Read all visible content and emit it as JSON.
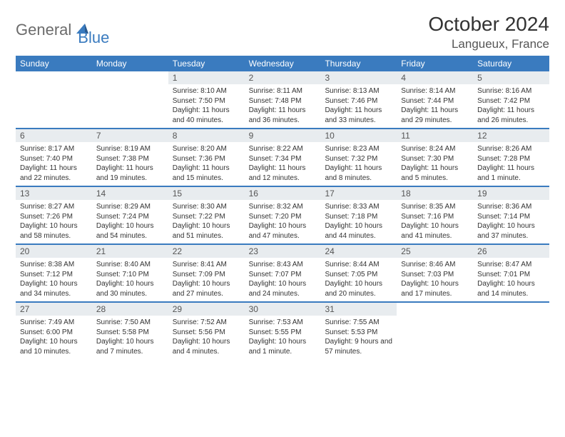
{
  "brand": {
    "part1": "General",
    "part2": "Blue"
  },
  "title": "October 2024",
  "location": "Langueux, France",
  "colors": {
    "header_bg": "#3a7bbf",
    "header_text": "#ffffff",
    "daynum_bg": "#e8ecef",
    "daynum_text": "#555555",
    "body_text": "#333333",
    "rule": "#3a7bbf"
  },
  "day_names": [
    "Sunday",
    "Monday",
    "Tuesday",
    "Wednesday",
    "Thursday",
    "Friday",
    "Saturday"
  ],
  "weeks": [
    [
      {
        "n": "",
        "sr": "",
        "ss": "",
        "dl": ""
      },
      {
        "n": "",
        "sr": "",
        "ss": "",
        "dl": ""
      },
      {
        "n": "1",
        "sr": "Sunrise: 8:10 AM",
        "ss": "Sunset: 7:50 PM",
        "dl": "Daylight: 11 hours and 40 minutes."
      },
      {
        "n": "2",
        "sr": "Sunrise: 8:11 AM",
        "ss": "Sunset: 7:48 PM",
        "dl": "Daylight: 11 hours and 36 minutes."
      },
      {
        "n": "3",
        "sr": "Sunrise: 8:13 AM",
        "ss": "Sunset: 7:46 PM",
        "dl": "Daylight: 11 hours and 33 minutes."
      },
      {
        "n": "4",
        "sr": "Sunrise: 8:14 AM",
        "ss": "Sunset: 7:44 PM",
        "dl": "Daylight: 11 hours and 29 minutes."
      },
      {
        "n": "5",
        "sr": "Sunrise: 8:16 AM",
        "ss": "Sunset: 7:42 PM",
        "dl": "Daylight: 11 hours and 26 minutes."
      }
    ],
    [
      {
        "n": "6",
        "sr": "Sunrise: 8:17 AM",
        "ss": "Sunset: 7:40 PM",
        "dl": "Daylight: 11 hours and 22 minutes."
      },
      {
        "n": "7",
        "sr": "Sunrise: 8:19 AM",
        "ss": "Sunset: 7:38 PM",
        "dl": "Daylight: 11 hours and 19 minutes."
      },
      {
        "n": "8",
        "sr": "Sunrise: 8:20 AM",
        "ss": "Sunset: 7:36 PM",
        "dl": "Daylight: 11 hours and 15 minutes."
      },
      {
        "n": "9",
        "sr": "Sunrise: 8:22 AM",
        "ss": "Sunset: 7:34 PM",
        "dl": "Daylight: 11 hours and 12 minutes."
      },
      {
        "n": "10",
        "sr": "Sunrise: 8:23 AM",
        "ss": "Sunset: 7:32 PM",
        "dl": "Daylight: 11 hours and 8 minutes."
      },
      {
        "n": "11",
        "sr": "Sunrise: 8:24 AM",
        "ss": "Sunset: 7:30 PM",
        "dl": "Daylight: 11 hours and 5 minutes."
      },
      {
        "n": "12",
        "sr": "Sunrise: 8:26 AM",
        "ss": "Sunset: 7:28 PM",
        "dl": "Daylight: 11 hours and 1 minute."
      }
    ],
    [
      {
        "n": "13",
        "sr": "Sunrise: 8:27 AM",
        "ss": "Sunset: 7:26 PM",
        "dl": "Daylight: 10 hours and 58 minutes."
      },
      {
        "n": "14",
        "sr": "Sunrise: 8:29 AM",
        "ss": "Sunset: 7:24 PM",
        "dl": "Daylight: 10 hours and 54 minutes."
      },
      {
        "n": "15",
        "sr": "Sunrise: 8:30 AM",
        "ss": "Sunset: 7:22 PM",
        "dl": "Daylight: 10 hours and 51 minutes."
      },
      {
        "n": "16",
        "sr": "Sunrise: 8:32 AM",
        "ss": "Sunset: 7:20 PM",
        "dl": "Daylight: 10 hours and 47 minutes."
      },
      {
        "n": "17",
        "sr": "Sunrise: 8:33 AM",
        "ss": "Sunset: 7:18 PM",
        "dl": "Daylight: 10 hours and 44 minutes."
      },
      {
        "n": "18",
        "sr": "Sunrise: 8:35 AM",
        "ss": "Sunset: 7:16 PM",
        "dl": "Daylight: 10 hours and 41 minutes."
      },
      {
        "n": "19",
        "sr": "Sunrise: 8:36 AM",
        "ss": "Sunset: 7:14 PM",
        "dl": "Daylight: 10 hours and 37 minutes."
      }
    ],
    [
      {
        "n": "20",
        "sr": "Sunrise: 8:38 AM",
        "ss": "Sunset: 7:12 PM",
        "dl": "Daylight: 10 hours and 34 minutes."
      },
      {
        "n": "21",
        "sr": "Sunrise: 8:40 AM",
        "ss": "Sunset: 7:10 PM",
        "dl": "Daylight: 10 hours and 30 minutes."
      },
      {
        "n": "22",
        "sr": "Sunrise: 8:41 AM",
        "ss": "Sunset: 7:09 PM",
        "dl": "Daylight: 10 hours and 27 minutes."
      },
      {
        "n": "23",
        "sr": "Sunrise: 8:43 AM",
        "ss": "Sunset: 7:07 PM",
        "dl": "Daylight: 10 hours and 24 minutes."
      },
      {
        "n": "24",
        "sr": "Sunrise: 8:44 AM",
        "ss": "Sunset: 7:05 PM",
        "dl": "Daylight: 10 hours and 20 minutes."
      },
      {
        "n": "25",
        "sr": "Sunrise: 8:46 AM",
        "ss": "Sunset: 7:03 PM",
        "dl": "Daylight: 10 hours and 17 minutes."
      },
      {
        "n": "26",
        "sr": "Sunrise: 8:47 AM",
        "ss": "Sunset: 7:01 PM",
        "dl": "Daylight: 10 hours and 14 minutes."
      }
    ],
    [
      {
        "n": "27",
        "sr": "Sunrise: 7:49 AM",
        "ss": "Sunset: 6:00 PM",
        "dl": "Daylight: 10 hours and 10 minutes."
      },
      {
        "n": "28",
        "sr": "Sunrise: 7:50 AM",
        "ss": "Sunset: 5:58 PM",
        "dl": "Daylight: 10 hours and 7 minutes."
      },
      {
        "n": "29",
        "sr": "Sunrise: 7:52 AM",
        "ss": "Sunset: 5:56 PM",
        "dl": "Daylight: 10 hours and 4 minutes."
      },
      {
        "n": "30",
        "sr": "Sunrise: 7:53 AM",
        "ss": "Sunset: 5:55 PM",
        "dl": "Daylight: 10 hours and 1 minute."
      },
      {
        "n": "31",
        "sr": "Sunrise: 7:55 AM",
        "ss": "Sunset: 5:53 PM",
        "dl": "Daylight: 9 hours and 57 minutes."
      },
      {
        "n": "",
        "sr": "",
        "ss": "",
        "dl": ""
      },
      {
        "n": "",
        "sr": "",
        "ss": "",
        "dl": ""
      }
    ]
  ]
}
